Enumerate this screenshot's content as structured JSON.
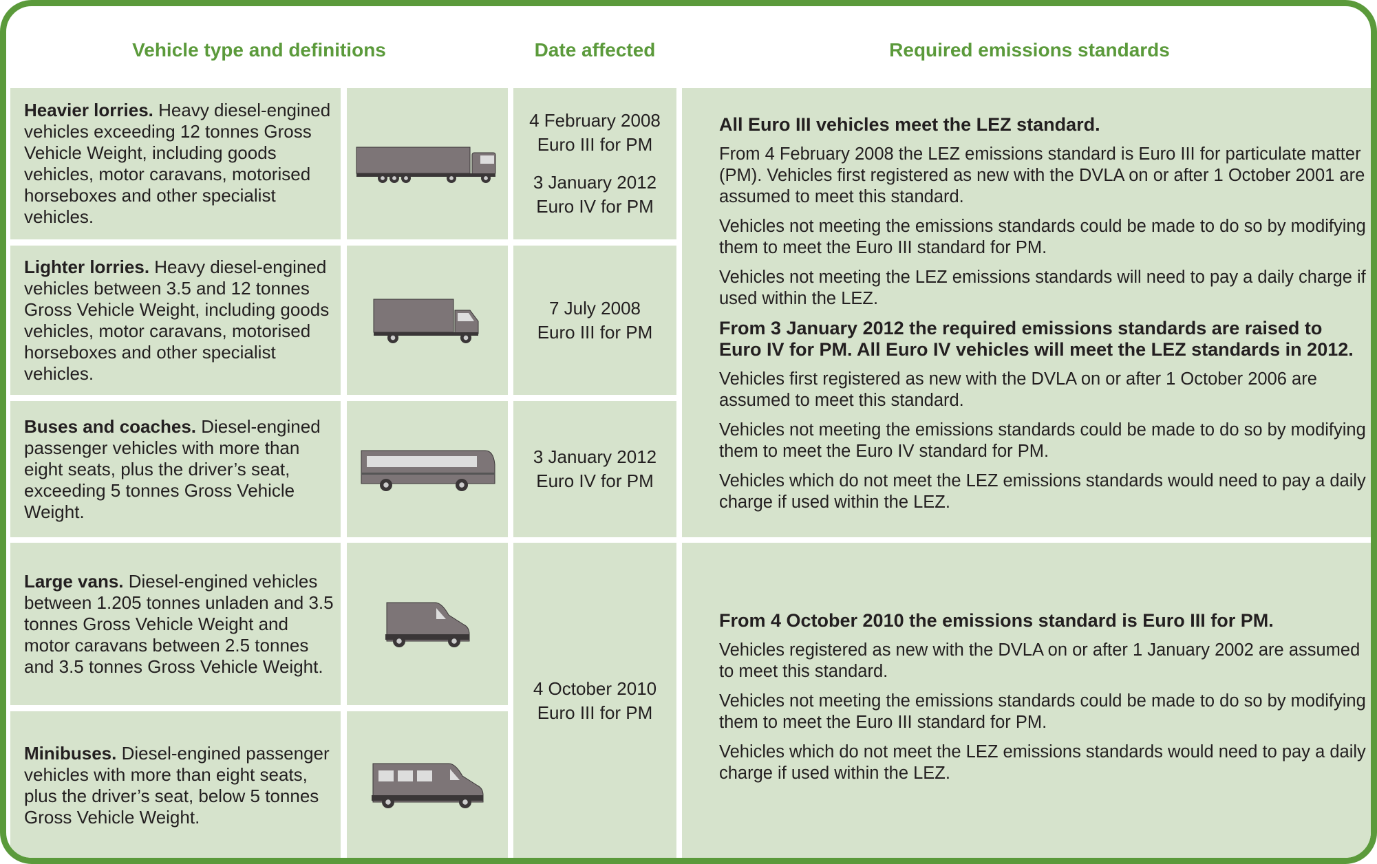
{
  "headers": [
    "Vehicle type and definitions",
    "Date affected",
    "Required emissions standards"
  ],
  "vehicles": [
    {
      "name": "Heavier lorries.",
      "description": "Heavy diesel-engined vehicles exceeding 12 tonnes Gross Vehicle Weight, including goods vehicles, motor caravans, motorised horseboxes and other specialist vehicles."
    },
    {
      "name": "Lighter lorries.",
      "description": "Heavy diesel-engined vehicles between 3.5 and 12 tonnes Gross Vehicle Weight, including goods vehicles, motor caravans, motorised horseboxes and other specialist vehicles."
    },
    {
      "name": "Buses and coaches.",
      "description": "Diesel-engined passenger vehicles with more than eight seats, plus the driver’s seat, exceeding 5 tonnes Gross Vehicle Weight."
    },
    {
      "name": "Large vans.",
      "description": "Diesel-engined vehicles between 1.205 tonnes unladen and 3.5 tonnes Gross Vehicle Weight and motor caravans between 2.5 tonnes and 3.5 tonnes Gross Vehicle Weight."
    },
    {
      "name": "Minibuses.",
      "description": "Diesel-engined passenger vehicles with more than eight seats, plus the driver’s seat, below 5 tonnes Gross Vehicle Weight."
    }
  ],
  "dates": [
    [
      {
        "date": "4 February 2008",
        "standard": "Euro III for PM"
      },
      {
        "date": "3 January 2012",
        "standard": "Euro IV for PM"
      }
    ],
    [
      {
        "date": "7 July 2008",
        "standard": "Euro III for PM"
      }
    ],
    [
      {
        "date": "3 January 2012",
        "standard": "Euro IV for PM"
      }
    ],
    [
      {
        "date": "4 October 2010",
        "standard": "Euro III for PM"
      }
    ]
  ],
  "standards": [
    [
      {
        "heading": "All Euro III vehicles meet the LEZ standard."
      },
      {
        "paragraph": "From 4 February 2008 the LEZ emissions standard is Euro III for particulate matter (PM).  Vehicles first registered as new with the DVLA on or after 1 October 2001 are assumed to meet this standard."
      },
      {
        "paragraph": "Vehicles not meeting the emissions standards could be made to do so by modifying them to meet the Euro III standard for PM."
      },
      {
        "paragraph": "Vehicles not meeting the LEZ emissions standards will need to pay a daily charge if used within the LEZ."
      },
      {
        "heading": "From 3 January 2012 the required emissions standards are raised to Euro IV for PM. All Euro IV vehicles will meet the LEZ standards in 2012."
      },
      {
        "paragraph": "Vehicles first registered as new with the DVLA on or after 1 October 2006 are assumed to meet this standard."
      },
      {
        "paragraph": "Vehicles not meeting the emissions standards could be made to do so by modifying them to meet the Euro IV standard for PM."
      },
      {
        "paragraph": "Vehicles which do not meet the LEZ emissions standards would need to pay a daily charge if used within the LEZ."
      }
    ],
    [
      {
        "heading": "From 4 October 2010 the emissions standard is Euro III for PM."
      },
      {
        "paragraph": "Vehicles registered as new with the DVLA on or after 1 January 2002 are assumed to meet this standard."
      },
      {
        "paragraph": "Vehicles not meeting the emissions standards could be made to do so by modifying them to meet the Euro III standard for PM."
      },
      {
        "paragraph": "Vehicles which do not meet the LEZ emissions standards would need to pay a daily charge if used within the LEZ."
      }
    ]
  ]
}
